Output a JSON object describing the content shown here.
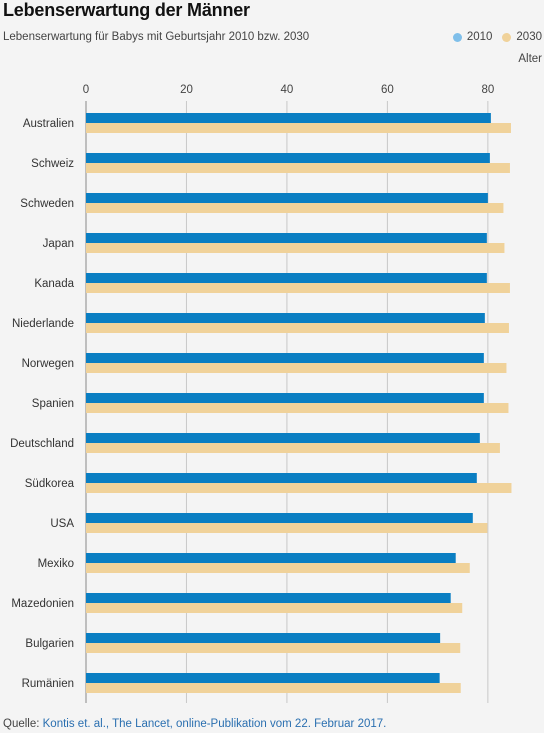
{
  "title": "Lebenserwartung der Männer",
  "subtitle": "Lebenserwartung für Babys mit Geburtsjahr 2010 bzw. 2030",
  "source": {
    "prefix": "Quelle: ",
    "link_text": "Kontis et. al., The Lancet, online-Publikation vom 22. Februar 2017."
  },
  "colors": {
    "series_2010": "#0a7ec2",
    "series_2030": "#f0d29a",
    "gridline": "#c8c8c8",
    "axis": "#888888"
  },
  "chart_data": {
    "type": "bar",
    "orientation": "horizontal",
    "title": "Lebenserwartung der Männer",
    "subtitle": "Lebenserwartung für Babys mit Geburtsjahr 2010 bzw. 2030",
    "unit_label": "Alter",
    "xlim": [
      0,
      86
    ],
    "x_ticks": [
      0,
      20,
      40,
      60,
      80
    ],
    "grid": true,
    "legend_position": "top-right",
    "categories": [
      "Australien",
      "Schweiz",
      "Schweden",
      "Japan",
      "Kanada",
      "Niederlande",
      "Norwegen",
      "Spanien",
      "Deutschland",
      "Südkorea",
      "USA",
      "Mexiko",
      "Mazedonien",
      "Bulgarien",
      "Rumänien"
    ],
    "series": [
      {
        "name": "2010",
        "color": "#0a7ec2",
        "values": [
          80.6,
          80.4,
          80.0,
          79.8,
          79.8,
          79.4,
          79.2,
          79.2,
          78.4,
          77.8,
          77.0,
          73.6,
          72.6,
          70.5,
          70.4
        ]
      },
      {
        "name": "2030",
        "color": "#f0d29a",
        "values": [
          84.6,
          84.4,
          83.1,
          83.3,
          84.4,
          84.2,
          83.7,
          84.1,
          82.4,
          84.7,
          79.9,
          76.4,
          74.9,
          74.5,
          74.6
        ]
      }
    ]
  }
}
